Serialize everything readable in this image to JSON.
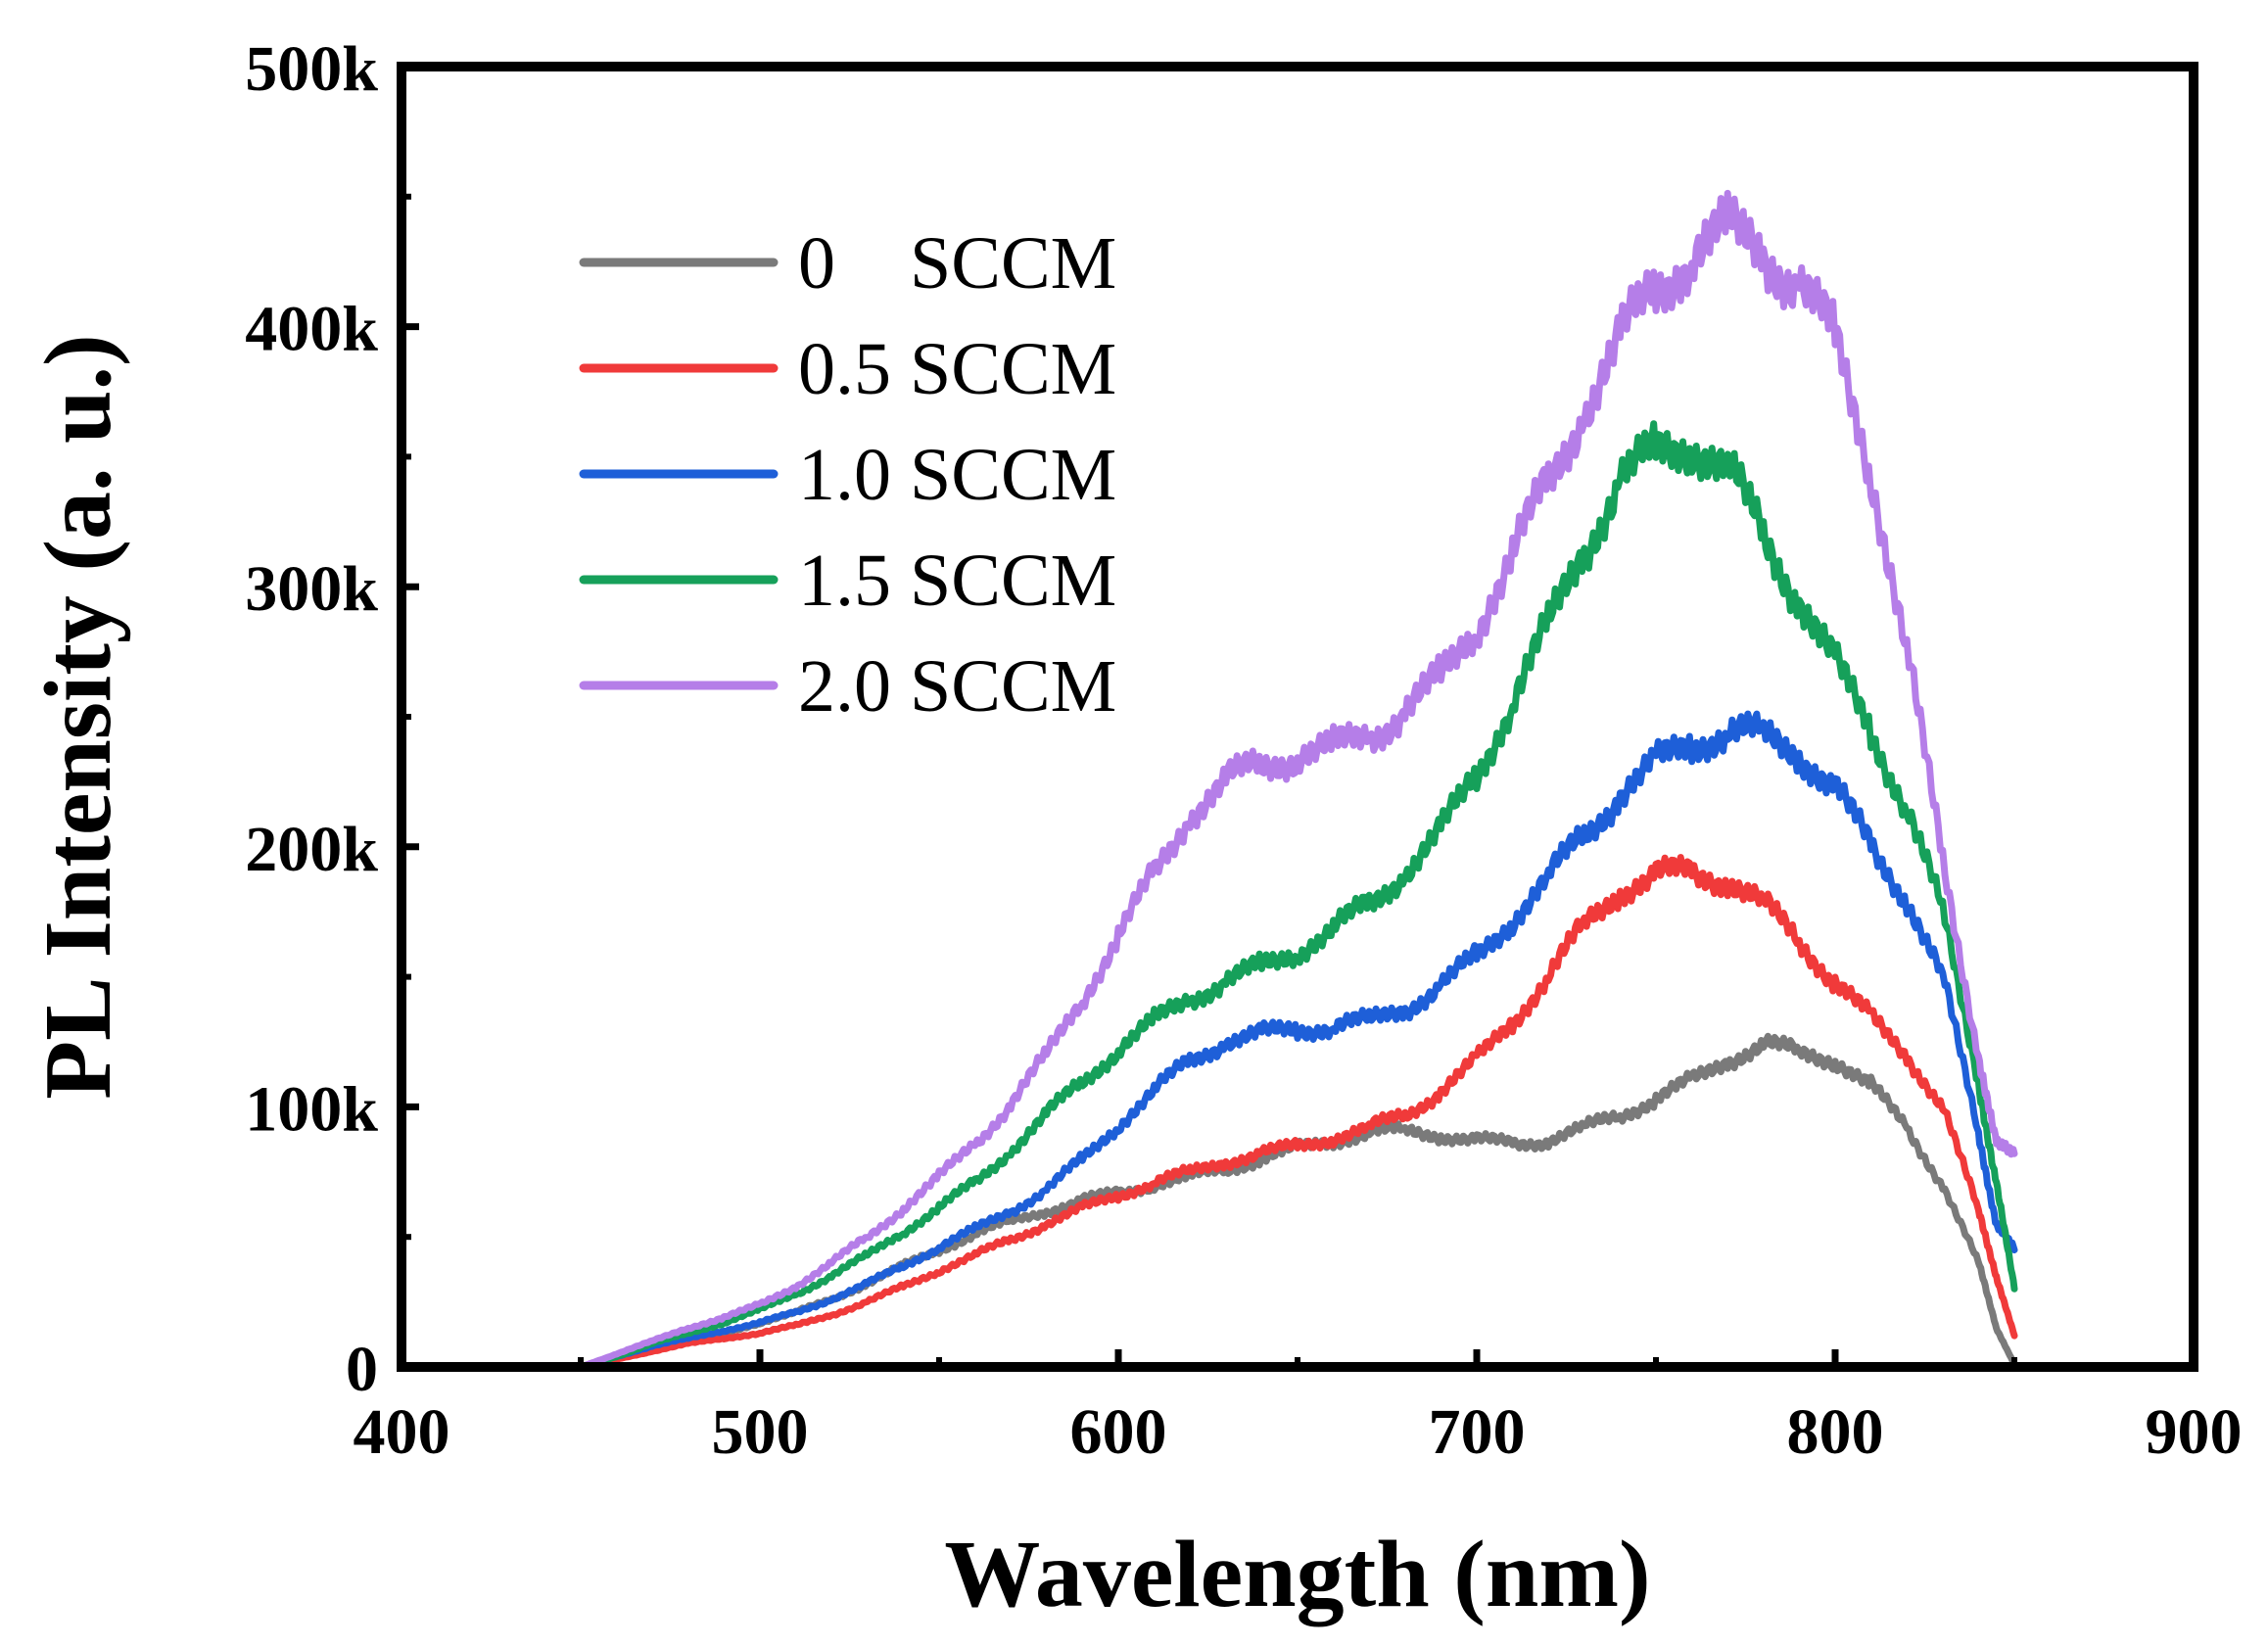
{
  "chart_data": {
    "type": "line",
    "title": "",
    "xlabel": "Wavelength (nm)",
    "ylabel": "PL Intensity (a. u.)",
    "xlim": [
      400,
      900
    ],
    "ylim": [
      0,
      500000
    ],
    "x_ticks": [
      400,
      500,
      600,
      700,
      800,
      900
    ],
    "x_tick_labels": [
      "400",
      "500",
      "600",
      "700",
      "800",
      "900"
    ],
    "y_ticks": [
      0,
      100000,
      200000,
      300000,
      400000,
      500000
    ],
    "y_tick_labels": [
      "0",
      "100k",
      "200k",
      "300k",
      "400k",
      "500k"
    ],
    "grid": false,
    "legend_position": "top-left",
    "series": [
      {
        "name": "0    SCCM",
        "color": "#7a7a7a",
        "x": [
          450,
          460,
          470,
          480,
          490,
          500,
          510,
          520,
          530,
          540,
          550,
          560,
          570,
          580,
          590,
          600,
          610,
          620,
          630,
          640,
          650,
          660,
          670,
          680,
          690,
          700,
          710,
          720,
          730,
          740,
          750,
          760,
          770,
          780,
          790,
          800,
          810,
          820,
          830,
          840,
          845,
          850
        ],
        "values": [
          0,
          3000,
          7000,
          10000,
          13000,
          17000,
          21000,
          26000,
          32000,
          39000,
          45000,
          51000,
          56000,
          60000,
          64000,
          67000,
          70000,
          73000,
          76000,
          80000,
          84000,
          87000,
          90000,
          91000,
          89000,
          87000,
          86000,
          87000,
          92000,
          97000,
          103000,
          110000,
          118000,
          124000,
          121000,
          118000,
          108000,
          92000,
          70000,
          40000,
          15000,
          1000
        ]
      },
      {
        "name": "0.5 SCCM",
        "color": "#f03a3a",
        "x": [
          450,
          460,
          470,
          480,
          490,
          500,
          510,
          520,
          530,
          540,
          550,
          560,
          570,
          580,
          590,
          600,
          610,
          620,
          630,
          640,
          650,
          660,
          670,
          680,
          690,
          700,
          710,
          720,
          730,
          740,
          750,
          760,
          770,
          780,
          790,
          800,
          810,
          820,
          830,
          840,
          845,
          850
        ],
        "values": [
          0,
          3000,
          6000,
          9000,
          11000,
          13000,
          16000,
          20000,
          25000,
          31000,
          37000,
          43000,
          49000,
          55000,
          61000,
          66000,
          71000,
          75000,
          79000,
          82000,
          85000,
          88000,
          92000,
          97000,
          106000,
          118000,
          133000,
          150000,
          170000,
          183000,
          189000,
          190000,
          187000,
          178000,
          164000,
          148000,
          134000,
          120000,
          100000,
          60000,
          35000,
          12000
        ]
      },
      {
        "name": "1.0 SCCM",
        "color": "#1e5fd8",
        "x": [
          450,
          460,
          470,
          480,
          490,
          500,
          510,
          520,
          530,
          540,
          550,
          560,
          570,
          580,
          590,
          600,
          610,
          620,
          630,
          640,
          650,
          660,
          670,
          680,
          690,
          700,
          710,
          720,
          730,
          740,
          750,
          760,
          770,
          780,
          790,
          800,
          810,
          820,
          830,
          840,
          845,
          850
        ],
        "values": [
          0,
          4000,
          8000,
          11000,
          14000,
          17000,
          21000,
          26000,
          32000,
          39000,
          46000,
          53000,
          60000,
          68000,
          80000,
          93000,
          106000,
          118000,
          125000,
          128000,
          130000,
          131000,
          133000,
          138000,
          146000,
          158000,
          172000,
          188000,
          205000,
          220000,
          232000,
          240000,
          244000,
          243000,
          236000,
          222000,
          200000,
          180000,
          150000,
          90000,
          55000,
          45000
        ]
      },
      {
        "name": "1.5 SCCM",
        "color": "#16a05a",
        "x": [
          450,
          460,
          470,
          480,
          490,
          500,
          510,
          520,
          530,
          540,
          550,
          560,
          570,
          580,
          590,
          600,
          610,
          620,
          630,
          640,
          650,
          660,
          670,
          680,
          690,
          700,
          710,
          720,
          730,
          740,
          750,
          760,
          770,
          780,
          790,
          800,
          810,
          820,
          830,
          840,
          845,
          850
        ],
        "values": [
          0,
          4000,
          9000,
          13000,
          17000,
          22000,
          28000,
          35000,
          43000,
          52000,
          61000,
          71000,
          83000,
          97000,
          110000,
          122000,
          133000,
          142000,
          148000,
          154000,
          160000,
          168000,
          178000,
          190000,
          206000,
          228000,
          256000,
          285000,
          315000,
          340000,
          352000,
          355000,
          345000,
          320000,
          295000,
          270000,
          245000,
          215000,
          175000,
          110000,
          70000,
          30000
        ]
      },
      {
        "name": "2.0 SCCM",
        "color": "#b57ee8",
        "x": [
          450,
          460,
          470,
          480,
          490,
          500,
          510,
          520,
          530,
          540,
          550,
          560,
          570,
          580,
          590,
          600,
          610,
          620,
          630,
          640,
          650,
          660,
          670,
          680,
          690,
          700,
          710,
          720,
          730,
          740,
          750,
          760,
          770,
          780,
          790,
          800,
          810,
          820,
          830,
          840,
          845,
          850
        ],
        "values": [
          0,
          5000,
          10000,
          15000,
          19000,
          24000,
          31000,
          40000,
          50000,
          61000,
          73000,
          86000,
          101000,
          120000,
          142000,
          165000,
          190000,
          212000,
          225000,
          232000,
          235000,
          238000,
          243000,
          252000,
          265000,
          285000,
          312000,
          340000,
          368000,
          395000,
          415000,
          428000,
          437000,
          430000,
          415000,
          395000,
          345000,
          275000,
          195000,
          120000,
          85000,
          82000
        ]
      }
    ]
  }
}
